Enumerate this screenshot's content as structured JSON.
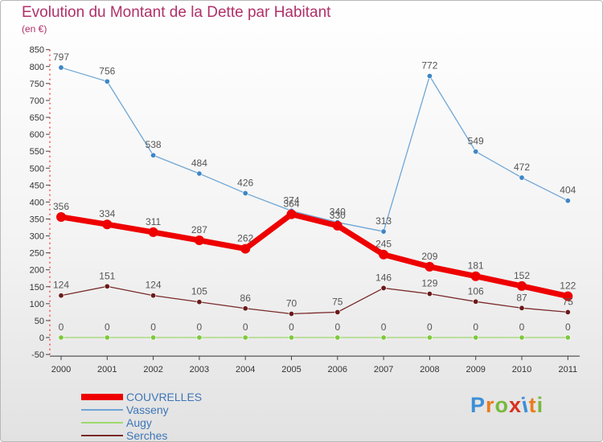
{
  "header": {
    "title": "Evolution du Montant de la Dette par Habitant",
    "unit": "(en €)"
  },
  "watermark": {
    "text": "Proxiti",
    "letter_colors": [
      "#3e8fd6",
      "#e87d1e",
      "#7ab83e",
      "#d8321f",
      "#3e8fd6",
      "#e87d1e",
      "#7ab83e"
    ]
  },
  "chart_data": {
    "type": "line",
    "title": "Evolution du Montant de la Dette par Habitant",
    "subtitle": "(en €)",
    "x": [
      "2000",
      "2001",
      "2002",
      "2003",
      "2004",
      "2005",
      "2006",
      "2007",
      "2008",
      "2009",
      "2010",
      "2011"
    ],
    "ylim": [
      -50,
      850
    ],
    "y_ticks": [
      -50,
      0,
      50,
      100,
      150,
      200,
      250,
      300,
      350,
      400,
      450,
      500,
      550,
      600,
      650,
      700,
      750,
      800,
      850
    ],
    "grid": false,
    "legend_position": "bottom-left",
    "series": [
      {
        "name": "COUVRELLES",
        "color": "#ee0000",
        "marker": "#ee0000",
        "width": "thick",
        "values": [
          356,
          334,
          311,
          287,
          262,
          364,
          330,
          245,
          209,
          181,
          152,
          122
        ]
      },
      {
        "name": "Vasseny",
        "color": "#6ea6d6",
        "marker": "#3e86c6",
        "width": "thin",
        "values": [
          797,
          756,
          538,
          484,
          426,
          374,
          340,
          313,
          772,
          549,
          472,
          404
        ]
      },
      {
        "name": "Augy",
        "color": "#9ed86e",
        "marker": "#7ec83e",
        "width": "thin",
        "values": [
          0,
          0,
          0,
          0,
          0,
          0,
          0,
          0,
          0,
          0,
          0,
          0
        ]
      },
      {
        "name": "Serches",
        "color": "#7a2a2a",
        "marker": "#6a1a1a",
        "width": "thin",
        "values": [
          124,
          151,
          124,
          105,
          86,
          70,
          75,
          146,
          129,
          106,
          87,
          75
        ]
      }
    ]
  }
}
